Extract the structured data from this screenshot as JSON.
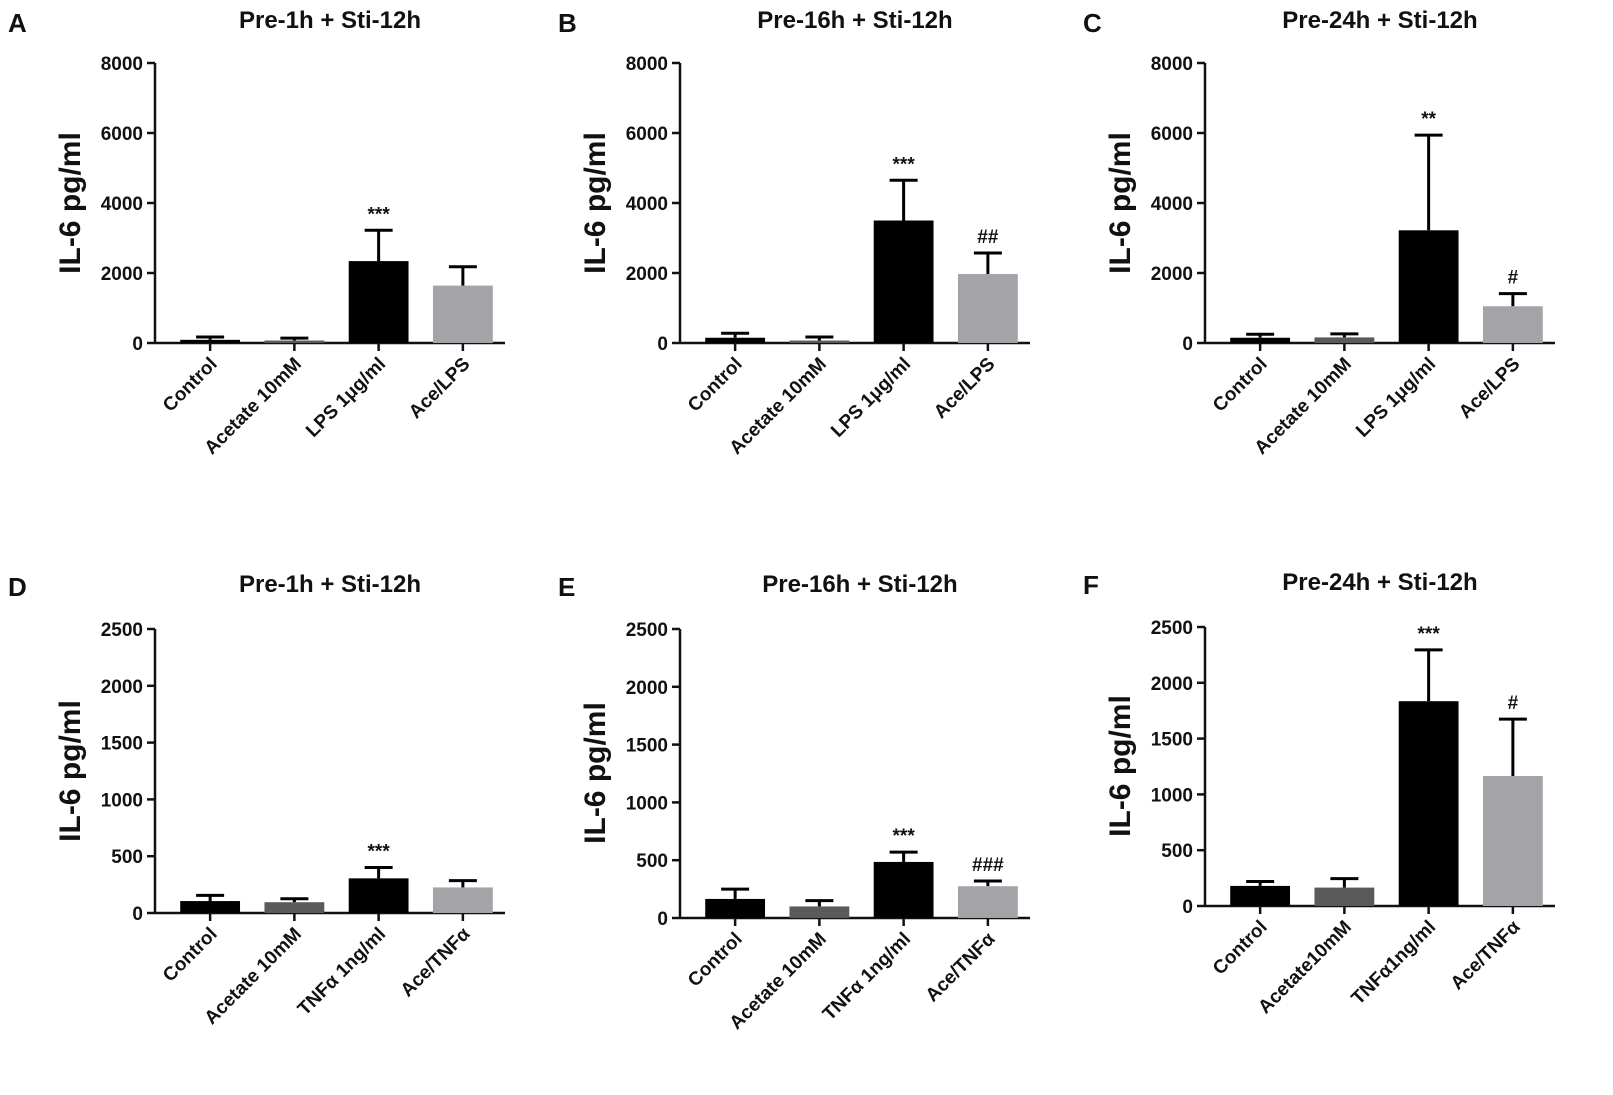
{
  "colors": {
    "control": "#000000",
    "acetate": "#5a5a5a",
    "stimulus": "#000000",
    "combination": "#a3a3a8",
    "axis": "#111111"
  },
  "chart_data": [
    {
      "panel": "A",
      "type": "bar",
      "title": "Pre-1h + Sti-12h",
      "ylabel": "IL-6 pg/ml",
      "ylim": [
        0,
        8000
      ],
      "yticks": [
        "0",
        "2000",
        "4000",
        "6000",
        "8000"
      ],
      "categories": [
        "Control",
        "Acetate 10mM",
        "LPS 1μg/ml",
        "Ace/LPS"
      ],
      "values": [
        90,
        70,
        2340,
        1640
      ],
      "errors": [
        80,
        70,
        880,
        540
      ],
      "significance": [
        "",
        "",
        "***",
        ""
      ]
    },
    {
      "panel": "B",
      "type": "bar",
      "title": "Pre-16h + Sti-12h",
      "ylabel": "IL-6 pg/ml",
      "ylim": [
        0,
        8000
      ],
      "yticks": [
        "0",
        "2000",
        "4000",
        "6000",
        "8000"
      ],
      "categories": [
        "Control",
        "Acetate 10mM",
        "LPS 1μg/ml",
        "Ace/LPS"
      ],
      "values": [
        150,
        70,
        3500,
        1970
      ],
      "errors": [
        130,
        100,
        1150,
        600
      ],
      "significance": [
        "",
        "",
        "***",
        "##"
      ]
    },
    {
      "panel": "C",
      "type": "bar",
      "title": "Pre-24h + Sti-12h",
      "ylabel": "IL-6 pg/ml",
      "ylim": [
        0,
        8000
      ],
      "yticks": [
        "0",
        "2000",
        "4000",
        "6000",
        "8000"
      ],
      "categories": [
        "Control",
        "Acetate 10mM",
        "LPS 1μg/ml",
        "Ace/LPS"
      ],
      "values": [
        150,
        160,
        3220,
        1050
      ],
      "errors": [
        100,
        100,
        2720,
        360
      ],
      "significance": [
        "",
        "",
        "**",
        "#"
      ]
    },
    {
      "panel": "D",
      "type": "bar",
      "title": "Pre-1h + Sti-12h",
      "ylabel": "IL-6 pg/ml",
      "ylim": [
        0,
        2500
      ],
      "yticks": [
        "0",
        "500",
        "1000",
        "1500",
        "2000",
        "2500"
      ],
      "categories": [
        "Control",
        "Acetate 10mM",
        "TNFα 1ng/ml",
        "Ace/TNFα"
      ],
      "values": [
        105,
        95,
        305,
        225
      ],
      "errors": [
        50,
        30,
        95,
        60
      ],
      "significance": [
        "",
        "",
        "***",
        ""
      ]
    },
    {
      "panel": "E",
      "type": "bar",
      "title": "Pre-16h + Sti-12h",
      "ylabel": "IL-6 pg/ml",
      "ylim": [
        0,
        2500
      ],
      "yticks": [
        "0",
        "500",
        "1000",
        "1500",
        "2000",
        "2500"
      ],
      "categories": [
        "Control",
        "Acetate 10mM",
        "TNFα 1ng/ml",
        "Ace/TNFα"
      ],
      "values": [
        165,
        100,
        485,
        275
      ],
      "errors": [
        85,
        50,
        85,
        45
      ],
      "significance": [
        "",
        "",
        "***",
        "###"
      ]
    },
    {
      "panel": "F",
      "type": "bar",
      "title": "Pre-24h + Sti-12h",
      "ylabel": "IL-6 pg/ml",
      "ylim": [
        0,
        2500
      ],
      "yticks": [
        "0",
        "500",
        "1000",
        "1500",
        "2000",
        "2500"
      ],
      "categories": [
        "Control",
        "Acetate10mM",
        "TNFα1ng/ml",
        "Ace/TNFα"
      ],
      "values": [
        180,
        165,
        1835,
        1165
      ],
      "errors": [
        40,
        80,
        460,
        510
      ],
      "significance": [
        "",
        "",
        "***",
        "#"
      ]
    }
  ]
}
